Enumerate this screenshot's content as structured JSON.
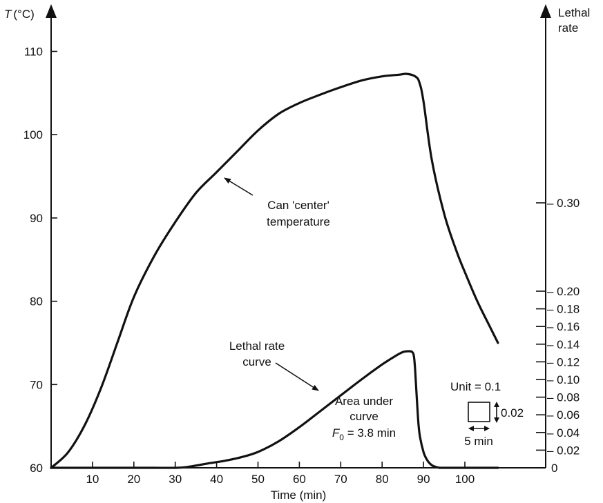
{
  "chart_data": {
    "type": "line",
    "title": "",
    "xlabel": "Time (min)",
    "ylabel_left": {
      "symbol": "T",
      "unit": "(°C)"
    },
    "ylabel_right": [
      "Lethal",
      "rate"
    ],
    "x_ticks": [
      10,
      20,
      30,
      40,
      50,
      60,
      70,
      80,
      90,
      100
    ],
    "y_left_ticks": [
      60,
      70,
      80,
      90,
      100,
      110
    ],
    "y_right_ticks": [
      "0",
      "0.02",
      "0.04",
      "0.06",
      "0.08",
      "0.10",
      "0.12",
      "0.14",
      "0.16",
      "0.18",
      "0.20",
      "0.30"
    ],
    "xlim": [
      0,
      108
    ],
    "ylim_left": [
      60,
      113
    ],
    "ylim_right": [
      0,
      0.35
    ],
    "series": [
      {
        "axis": "left",
        "x": [
          0,
          4,
          8,
          12,
          16,
          20,
          25,
          30,
          35,
          40,
          45,
          50,
          55,
          60,
          65,
          70,
          75,
          80,
          84,
          86,
          88,
          89,
          90,
          92,
          95,
          98,
          100,
          103,
          106,
          108
        ],
        "y": [
          60,
          61.8,
          65,
          69.5,
          75,
          80.5,
          85.5,
          89.5,
          93,
          95.5,
          98,
          100.5,
          102.5,
          103.8,
          104.8,
          105.7,
          106.5,
          107,
          107.2,
          107.3,
          107,
          106.3,
          104,
          97,
          90.5,
          86,
          83.5,
          80,
          77,
          75
        ]
      },
      {
        "axis": "right",
        "x": [
          0,
          10,
          20,
          25,
          30,
          33,
          38,
          42,
          46,
          50,
          55,
          60,
          65,
          70,
          75,
          80,
          83,
          85,
          86.5,
          87.3,
          87.7,
          88,
          88.5,
          89,
          90,
          91,
          92,
          93,
          94,
          95,
          108
        ],
        "y": [
          0,
          0,
          0,
          0,
          0,
          0.001,
          0.005,
          0.008,
          0.012,
          0.018,
          0.03,
          0.046,
          0.064,
          0.082,
          0.1,
          0.117,
          0.126,
          0.131,
          0.132,
          0.131,
          0.126,
          0.11,
          0.07,
          0.04,
          0.018,
          0.008,
          0.003,
          0.001,
          0,
          0,
          0
        ]
      }
    ],
    "annotations": {
      "temperature_label": [
        "Can 'center'",
        "temperature"
      ],
      "lethal_label": [
        "Lethal rate",
        "curve"
      ],
      "area_label_1": "Area under",
      "area_label_2": "curve",
      "f0_symbol": "F",
      "f0_subscript": "0",
      "f0_value": " = 3.8 min",
      "unit_label": "Unit = 0.1",
      "unit_height": "0.02",
      "unit_width": "5 min"
    }
  }
}
